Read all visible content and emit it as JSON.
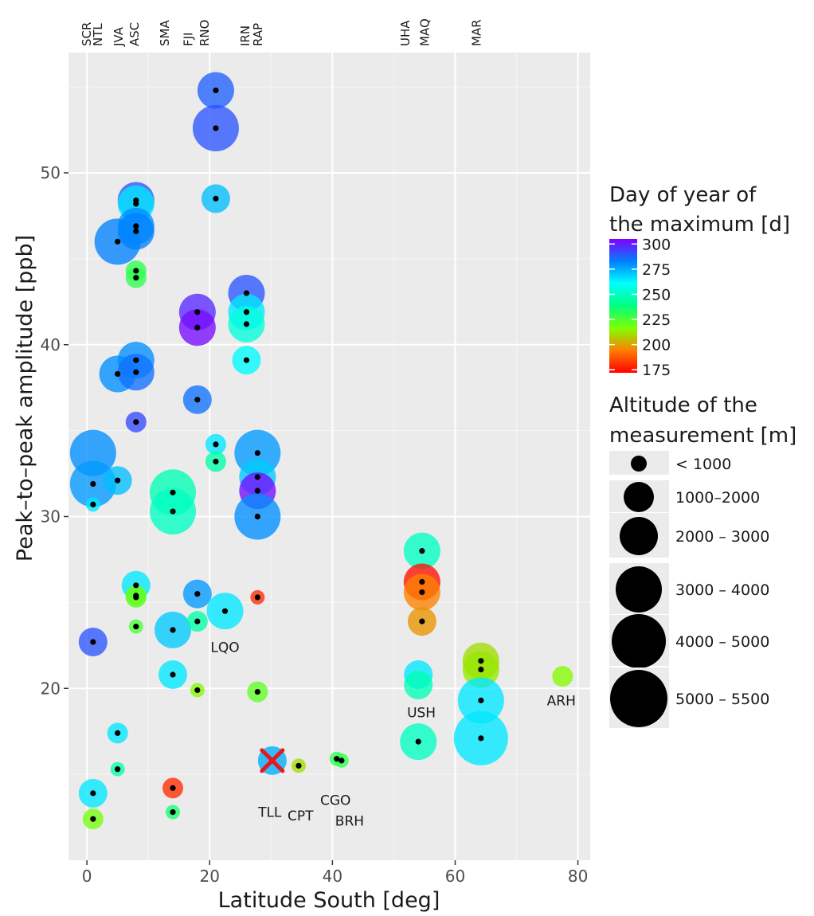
{
  "chart_data": {
    "type": "scatter",
    "xlabel": "Latitude South [deg]",
    "ylabel": "Peak–to–peak amplitude [ppb]",
    "xlim": [
      -3,
      82
    ],
    "ylim": [
      10,
      57
    ],
    "x_ticks": [
      0,
      20,
      40,
      60,
      80
    ],
    "y_ticks": [
      20,
      30,
      40,
      50
    ],
    "grid": true,
    "legend_placement": "right",
    "top_labels": [
      {
        "name": "SCR",
        "x": 0
      },
      {
        "name": "NTL",
        "x": 1.8
      },
      {
        "name": "JVA",
        "x": 5.2
      },
      {
        "name": "ASC",
        "x": 7.8
      },
      {
        "name": "SMA",
        "x": 12.7
      },
      {
        "name": "FJI",
        "x": 16.5
      },
      {
        "name": "RNO",
        "x": 19.2
      },
      {
        "name": "IRN",
        "x": 25.8
      },
      {
        "name": "RAP",
        "x": 27.9
      },
      {
        "name": "UHA",
        "x": 51.9
      },
      {
        "name": "MAQ",
        "x": 55.1
      },
      {
        "name": "MAR",
        "x": 63.5
      }
    ],
    "annotations": [
      {
        "text": "LQO",
        "x": 22.5,
        "y": 22.4
      },
      {
        "text": "USH",
        "x": 54.5,
        "y": 18.6
      },
      {
        "text": "ARH",
        "x": 77.3,
        "y": 19.3
      },
      {
        "text": "TLL",
        "x": 29.8,
        "y": 12.8
      },
      {
        "text": "CPT",
        "x": 34.8,
        "y": 12.6
      },
      {
        "text": "CGO",
        "x": 40.5,
        "y": 13.5
      },
      {
        "text": "BRH",
        "x": 42.8,
        "y": 12.3
      }
    ],
    "color_legend": {
      "title_lines": [
        "Day of year of",
        "the maximum [d]"
      ],
      "min": 172,
      "max": 305,
      "ticks": [
        300,
        275,
        250,
        225,
        200,
        175
      ]
    },
    "size_legend": {
      "title_lines": [
        "Altitude of the",
        "measurement [m]"
      ],
      "classes": [
        "< 1000",
        "1000–2000",
        "2000 – 3000",
        "3000 – 4000",
        "4000 – 5000",
        "5000 – 5500"
      ]
    },
    "points": [
      {
        "x": 1,
        "y": 33.7,
        "day": 280,
        "alt": 4
      },
      {
        "x": 1,
        "y": 31.9,
        "day": 278,
        "alt": 4
      },
      {
        "x": 1,
        "y": 30.7,
        "day": 265,
        "alt": 0
      },
      {
        "x": 1,
        "y": 22.7,
        "day": 290,
        "alt": 2
      },
      {
        "x": 1,
        "y": 13.9,
        "day": 265,
        "alt": 2
      },
      {
        "x": 1,
        "y": 12.4,
        "day": 218,
        "alt": 1
      },
      {
        "x": 5,
        "y": 46.0,
        "day": 282,
        "alt": 4
      },
      {
        "x": 5,
        "y": 38.3,
        "day": 280,
        "alt": 3
      },
      {
        "x": 5,
        "y": 32.1,
        "day": 272,
        "alt": 2
      },
      {
        "x": 5,
        "y": 17.4,
        "day": 265,
        "alt": 1
      },
      {
        "x": 5,
        "y": 15.3,
        "day": 245,
        "alt": 0
      },
      {
        "x": 8,
        "y": 48.4,
        "day": 290,
        "alt": 3
      },
      {
        "x": 8,
        "y": 48.2,
        "day": 265,
        "alt": 3
      },
      {
        "x": 8,
        "y": 46.9,
        "day": 280,
        "alt": 3
      },
      {
        "x": 8,
        "y": 46.6,
        "day": 282,
        "alt": 3
      },
      {
        "x": 8,
        "y": 44.3,
        "day": 230,
        "alt": 1
      },
      {
        "x": 8,
        "y": 43.9,
        "day": 230,
        "alt": 1
      },
      {
        "x": 8,
        "y": 39.1,
        "day": 280,
        "alt": 3
      },
      {
        "x": 8,
        "y": 38.4,
        "day": 285,
        "alt": 3
      },
      {
        "x": 8,
        "y": 35.5,
        "day": 292,
        "alt": 1
      },
      {
        "x": 8,
        "y": 26.0,
        "day": 265,
        "alt": 2
      },
      {
        "x": 8,
        "y": 25.4,
        "day": 220,
        "alt": 1
      },
      {
        "x": 8,
        "y": 25.3,
        "day": 222,
        "alt": 1
      },
      {
        "x": 8,
        "y": 23.6,
        "day": 225,
        "alt": 0
      },
      {
        "x": 14,
        "y": 31.4,
        "day": 248,
        "alt": 4
      },
      {
        "x": 14,
        "y": 30.3,
        "day": 250,
        "alt": 4
      },
      {
        "x": 14,
        "y": 23.4,
        "day": 270,
        "alt": 3
      },
      {
        "x": 14,
        "y": 20.8,
        "day": 265,
        "alt": 2
      },
      {
        "x": 14,
        "y": 14.2,
        "day": 180,
        "alt": 1
      },
      {
        "x": 14,
        "y": 12.8,
        "day": 235,
        "alt": 0
      },
      {
        "x": 18,
        "y": 41.9,
        "day": 298,
        "alt": 3
      },
      {
        "x": 18,
        "y": 41.0,
        "day": 303,
        "alt": 3
      },
      {
        "x": 18,
        "y": 36.8,
        "day": 285,
        "alt": 2
      },
      {
        "x": 18,
        "y": 25.5,
        "day": 278,
        "alt": 2
      },
      {
        "x": 18,
        "y": 23.9,
        "day": 245,
        "alt": 1
      },
      {
        "x": 18,
        "y": 19.9,
        "day": 215,
        "alt": 0
      },
      {
        "x": 21,
        "y": 54.8,
        "day": 288,
        "alt": 3
      },
      {
        "x": 21,
        "y": 52.6,
        "day": 290,
        "alt": 4
      },
      {
        "x": 21,
        "y": 48.5,
        "day": 272,
        "alt": 2
      },
      {
        "x": 21,
        "y": 34.2,
        "day": 265,
        "alt": 1
      },
      {
        "x": 21,
        "y": 33.2,
        "day": 245,
        "alt": 1
      },
      {
        "x": 22.5,
        "y": 24.5,
        "day": 265,
        "alt": 3
      },
      {
        "x": 26,
        "y": 43.0,
        "day": 290,
        "alt": 3
      },
      {
        "x": 26,
        "y": 41.9,
        "day": 265,
        "alt": 3
      },
      {
        "x": 26,
        "y": 41.2,
        "day": 255,
        "alt": 3
      },
      {
        "x": 26,
        "y": 39.1,
        "day": 262,
        "alt": 2
      },
      {
        "x": 27.8,
        "y": 33.7,
        "day": 278,
        "alt": 4
      },
      {
        "x": 27.8,
        "y": 32.3,
        "day": 270,
        "alt": 3
      },
      {
        "x": 27.8,
        "y": 31.5,
        "day": 303,
        "alt": 3
      },
      {
        "x": 27.8,
        "y": 30.0,
        "day": 280,
        "alt": 4
      },
      {
        "x": 27.8,
        "y": 25.3,
        "day": 180,
        "alt": 0
      },
      {
        "x": 27.8,
        "y": 19.8,
        "day": 222,
        "alt": 1
      },
      {
        "x": 30.2,
        "y": 15.8,
        "day": 275,
        "alt": 2
      },
      {
        "x": 34.5,
        "y": 15.5,
        "day": 210,
        "alt": 0
      },
      {
        "x": 40.7,
        "y": 15.9,
        "day": 230,
        "alt": 0
      },
      {
        "x": 41.5,
        "y": 15.8,
        "day": 230,
        "alt": 0
      },
      {
        "x": 54.6,
        "y": 28.0,
        "day": 250,
        "alt": 3
      },
      {
        "x": 54.6,
        "y": 26.2,
        "day": 175,
        "alt": 3
      },
      {
        "x": 54.6,
        "y": 25.6,
        "day": 195,
        "alt": 3
      },
      {
        "x": 54.6,
        "y": 23.9,
        "day": 198,
        "alt": 2
      },
      {
        "x": 54.0,
        "y": 20.8,
        "day": 265,
        "alt": 2
      },
      {
        "x": 54.0,
        "y": 20.2,
        "day": 248,
        "alt": 2
      },
      {
        "x": 54.0,
        "y": 16.9,
        "day": 250,
        "alt": 3
      },
      {
        "x": 64.2,
        "y": 21.6,
        "day": 210,
        "alt": 3
      },
      {
        "x": 64.2,
        "y": 21.1,
        "day": 212,
        "alt": 3
      },
      {
        "x": 64.2,
        "y": 19.3,
        "day": 265,
        "alt": 4
      },
      {
        "x": 64.2,
        "y": 17.1,
        "day": 265,
        "alt": 5
      },
      {
        "x": 77.5,
        "y": 20.7,
        "day": 215,
        "alt": 1
      }
    ],
    "dotless": [
      0,
      60,
      61,
      67
    ],
    "cross": {
      "x": 30.2,
      "y": 15.8
    }
  }
}
